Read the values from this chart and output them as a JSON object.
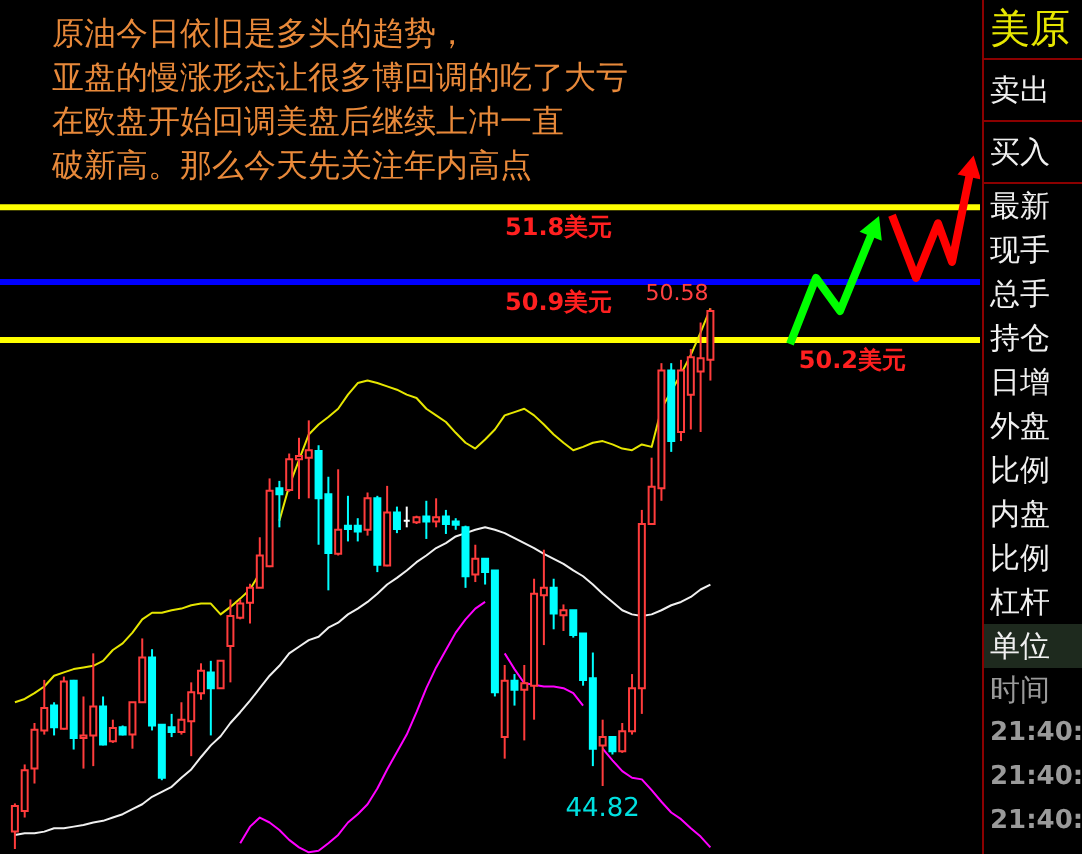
{
  "chart_data": [
    {
      "type": "candlestick",
      "categories": [
        null,
        null,
        null,
        null,
        null,
        null,
        null,
        null,
        null,
        null,
        null,
        null,
        null,
        null,
        null,
        null,
        null,
        null,
        null,
        null,
        null,
        null,
        null,
        null,
        null,
        null,
        null,
        null,
        null,
        null,
        null,
        null,
        null,
        null,
        null,
        null,
        null,
        null,
        null,
        null,
        null,
        null,
        null,
        null,
        null,
        null,
        null,
        null,
        null,
        null,
        null,
        null,
        null,
        null,
        null,
        null,
        null,
        null,
        null,
        null,
        null,
        null,
        null,
        null,
        null,
        null,
        null,
        null,
        null,
        null,
        null,
        null
      ],
      "ohlc": [
        [
          44.27,
          44.61,
          44.06,
          44.58
        ],
        [
          44.52,
          45.08,
          44.44,
          45.01
        ],
        [
          45.03,
          45.58,
          44.85,
          45.5
        ],
        [
          45.49,
          46.1,
          45.44,
          45.76
        ],
        [
          45.79,
          45.83,
          45.43,
          45.53
        ],
        [
          45.51,
          46.14,
          45.5,
          46.08
        ],
        [
          46.09,
          46.1,
          45.26,
          45.4
        ],
        [
          45.4,
          45.9,
          45.03,
          45.43
        ],
        [
          45.43,
          46.42,
          45.06,
          45.78
        ],
        [
          45.78,
          45.9,
          45.31,
          45.32
        ],
        [
          45.36,
          45.62,
          45.34,
          45.52
        ],
        [
          45.53,
          45.55,
          45.43,
          45.44
        ],
        [
          45.44,
          45.83,
          45.27,
          45.83
        ],
        [
          45.83,
          46.6,
          45.83,
          46.37
        ],
        [
          46.37,
          46.47,
          45.49,
          45.55
        ],
        [
          45.56,
          45.56,
          44.89,
          44.92
        ],
        [
          45.53,
          45.69,
          45.41,
          45.47
        ],
        [
          45.47,
          45.83,
          45.44,
          45.62
        ],
        [
          45.6,
          46.07,
          45.18,
          45.95
        ],
        [
          45.94,
          46.3,
          45.86,
          46.21
        ],
        [
          46.19,
          46.33,
          45.43,
          46.0
        ],
        [
          46.0,
          46.33,
          45.99,
          46.33
        ],
        [
          46.51,
          47.07,
          46.07,
          46.87
        ],
        [
          46.85,
          47.07,
          46.83,
          47.02
        ],
        [
          47.03,
          47.26,
          46.78,
          47.21
        ],
        [
          47.21,
          47.82,
          47.21,
          47.6
        ],
        [
          47.47,
          48.53,
          47.46,
          48.38
        ],
        [
          48.41,
          48.5,
          47.94,
          48.34
        ],
        [
          48.39,
          48.83,
          48.37,
          48.76
        ],
        [
          48.76,
          49.02,
          48.28,
          48.8
        ],
        [
          48.78,
          49.23,
          48.29,
          48.87
        ],
        [
          48.86,
          48.93,
          47.73,
          48.29
        ],
        [
          48.34,
          48.55,
          47.18,
          47.63
        ],
        [
          47.62,
          48.64,
          47.6,
          47.91
        ],
        [
          47.96,
          48.32,
          47.77,
          47.92
        ],
        [
          47.96,
          48.05,
          47.77,
          47.89
        ],
        [
          47.91,
          48.36,
          47.84,
          48.29
        ],
        [
          48.29,
          48.32,
          47.4,
          47.49
        ],
        [
          47.48,
          48.44,
          47.47,
          48.12
        ],
        [
          48.12,
          48.19,
          47.87,
          47.92
        ],
        [
          48.02,
          48.19,
          47.94,
          48.02
        ],
        [
          48.0,
          48.08,
          47.98,
          48.06
        ],
        [
          48.07,
          48.26,
          47.8,
          48.01
        ],
        [
          48.01,
          48.29,
          47.94,
          48.06
        ],
        [
          48.07,
          48.15,
          47.86,
          47.98
        ],
        [
          48.01,
          48.05,
          47.91,
          47.97
        ],
        [
          47.94,
          47.96,
          47.21,
          47.35
        ],
        [
          47.37,
          47.73,
          47.28,
          47.56
        ],
        [
          47.56,
          47.56,
          47.25,
          47.4
        ],
        [
          47.42,
          47.42,
          45.9,
          45.95
        ],
        [
          45.41,
          46.28,
          45.15,
          46.09
        ],
        [
          46.09,
          46.17,
          45.79,
          45.98
        ],
        [
          45.98,
          46.28,
          45.37,
          46.06
        ],
        [
          46.03,
          47.32,
          45.62,
          47.14
        ],
        [
          47.12,
          47.67,
          46.52,
          47.21
        ],
        [
          47.21,
          47.32,
          46.71,
          46.9
        ],
        [
          46.88,
          47.01,
          46.69,
          46.94
        ],
        [
          46.94,
          46.94,
          46.61,
          46.64
        ],
        [
          46.66,
          46.66,
          46.03,
          46.1
        ],
        [
          46.12,
          46.43,
          45.06,
          45.27
        ],
        [
          45.31,
          45.62,
          44.82,
          45.41
        ],
        [
          45.41,
          45.41,
          45.2,
          45.24
        ],
        [
          45.24,
          45.58,
          45.22,
          45.48
        ],
        [
          45.48,
          46.17,
          45.44,
          46.0
        ],
        [
          46.0,
          48.15,
          45.69,
          47.98
        ],
        [
          47.98,
          48.78,
          47.98,
          48.43
        ],
        [
          48.41,
          49.92,
          48.26,
          49.83
        ],
        [
          49.83,
          49.92,
          48.85,
          48.98
        ],
        [
          49.09,
          49.96,
          48.98,
          49.83
        ],
        [
          49.54,
          50.09,
          49.12,
          49.99
        ],
        [
          49.82,
          50.41,
          49.09,
          49.98
        ],
        [
          49.96,
          50.58,
          49.71,
          50.55
        ]
      ],
      "colors": [
        "#ff3c3c",
        "#ff3c3c",
        "#ff3c3c",
        "#ff3c3c",
        "#00ffff",
        "#ff3c3c",
        "#00ffff",
        "#ff3c3c",
        "#ff3c3c",
        "#00ffff",
        "#ff3c3c",
        "#00ffff",
        "#ff3c3c",
        "#ff3c3c",
        "#00ffff",
        "#00ffff",
        "#00ffff",
        "#ff3c3c",
        "#ff3c3c",
        "#ff3c3c",
        "#00ffff",
        "#ff3c3c",
        "#ff3c3c",
        "#ff3c3c",
        "#ff3c3c",
        "#ff3c3c",
        "#ff3c3c",
        "#00ffff",
        "#ff3c3c",
        "#ff3c3c",
        "#ff3c3c",
        "#00ffff",
        "#00ffff",
        "#ff3c3c",
        "#00ffff",
        "#00ffff",
        "#ff3c3c",
        "#00ffff",
        "#ff3c3c",
        "#00ffff",
        "#ffffff",
        "#ff3c3c",
        "#00ffff",
        "#ff3c3c",
        "#00ffff",
        "#00ffff",
        "#00ffff",
        "#ff3c3c",
        "#00ffff",
        "#00ffff",
        "#ff3c3c",
        "#00ffff",
        "#ff3c3c",
        "#ff3c3c",
        "#ff3c3c",
        "#00ffff",
        "#ff3c3c",
        "#00ffff",
        "#00ffff",
        "#00ffff",
        "#ff3c3c",
        "#00ffff",
        "#ff3c3c",
        "#ff3c3c",
        "#ff3c3c",
        "#ff3c3c",
        "#ff3c3c",
        "#00ffff",
        "#ff3c3c",
        "#ff3c3c",
        "#ff3c3c",
        "#ff3c3c"
      ],
      "series": [
        {
          "type": "line",
          "color": "#e6e600",
          "values": [
            45.83,
            45.87,
            45.94,
            46.02,
            46.15,
            46.19,
            46.23,
            46.25,
            46.27,
            46.33,
            46.46,
            46.54,
            46.67,
            46.83,
            46.91,
            46.91,
            46.94,
            46.96,
            47.0,
            47.02,
            47.02,
            46.89,
            46.98,
            47.08,
            47.19,
            47.39,
            null,
            48.02,
            48.44,
            48.75,
            49.06,
            49.18,
            49.27,
            49.37,
            49.54,
            49.68,
            49.71,
            49.68,
            49.64,
            49.6,
            49.54,
            49.5,
            49.37,
            49.29,
            49.21,
            49.08,
            48.96,
            48.89,
            49.0,
            49.12,
            49.29,
            49.33,
            49.37,
            49.29,
            49.18,
            49.06,
            48.96,
            48.87,
            48.91,
            48.96,
            48.98,
            48.94,
            48.89,
            48.87,
            48.94,
            48.91,
            49.37,
            49.58,
            49.79,
            50.02,
            50.29,
            50.58
          ]
        },
        {
          "type": "line",
          "color": "#f0f0f0",
          "values": [
            44.23,
            44.25,
            44.25,
            44.27,
            44.31,
            44.31,
            44.33,
            44.35,
            44.38,
            44.4,
            44.44,
            44.48,
            44.54,
            44.6,
            44.69,
            44.75,
            44.81,
            44.92,
            45.02,
            45.17,
            45.31,
            45.42,
            45.58,
            45.71,
            45.85,
            46.0,
            46.15,
            46.27,
            46.42,
            46.5,
            46.58,
            46.62,
            46.73,
            46.79,
            46.89,
            46.96,
            47.04,
            47.14,
            47.25,
            47.33,
            47.42,
            47.52,
            47.6,
            47.69,
            47.75,
            47.83,
            47.87,
            47.91,
            47.94,
            47.91,
            47.87,
            47.81,
            47.75,
            47.69,
            47.62,
            47.56,
            47.5,
            47.42,
            47.35,
            47.25,
            47.14,
            47.04,
            46.94,
            46.89,
            46.87,
            46.89,
            46.94,
            47.0,
            47.04,
            47.1,
            47.19,
            47.25
          ]
        },
        {
          "type": "line",
          "color": "#ff00ff",
          "values": [
            null,
            null,
            null,
            null,
            null,
            null,
            null,
            null,
            null,
            null,
            null,
            null,
            null,
            null,
            null,
            null,
            null,
            null,
            null,
            null,
            null,
            null,
            null,
            44.13,
            44.33,
            44.44,
            44.38,
            44.29,
            44.17,
            44.08,
            44.02,
            44.04,
            44.13,
            44.23,
            44.38,
            44.48,
            44.6,
            44.79,
            45.02,
            45.23,
            45.44,
            45.71,
            46.0,
            46.25,
            46.46,
            46.67,
            46.83,
            46.96,
            47.04,
            null,
            46.42,
            46.23,
            46.06,
            46.04,
            46.02,
            46.02,
            46.0,
            45.94,
            45.79,
            null,
            45.27,
            45.13,
            45.0,
            44.92,
            44.9,
            44.77,
            44.63,
            44.5,
            44.42,
            44.31,
            44.21,
            44.08
          ]
        }
      ],
      "ylim": [
        44.0,
        54.3
      ],
      "tick_labels": false,
      "ref_lines": [
        {
          "axis": "y",
          "value": 51.8,
          "label": "51.8美元",
          "color": "#ffff00"
        },
        {
          "axis": "y",
          "value": 50.9,
          "label": "50.9美元",
          "color": "#0000ff"
        },
        {
          "axis": "y",
          "value": 50.2,
          "label": "50.2美元",
          "color": "#ffff00"
        }
      ],
      "annotations": [
        "50.58",
        "原油今日依旧是多头的趋势，",
        "亚盘的慢涨形态让很多博回调的吃了大亏",
        "在欧盘开始回调美盘后继续上冲一直",
        "破新高。那么今天先关注年内高点",
        {
          "text": "44.82",
          "y": 44.82
        }
      ]
    },
    {
      "type": "other",
      "title": "美原",
      "annotations": [
        "卖出",
        "买入",
        "最新",
        "现手",
        "总手",
        "持仓",
        "日增",
        "外盘",
        "比例",
        "内盘",
        "比例",
        "杠杆",
        "单位",
        "时间",
        "21:40:",
        "21:40:",
        "21:40:"
      ]
    }
  ]
}
